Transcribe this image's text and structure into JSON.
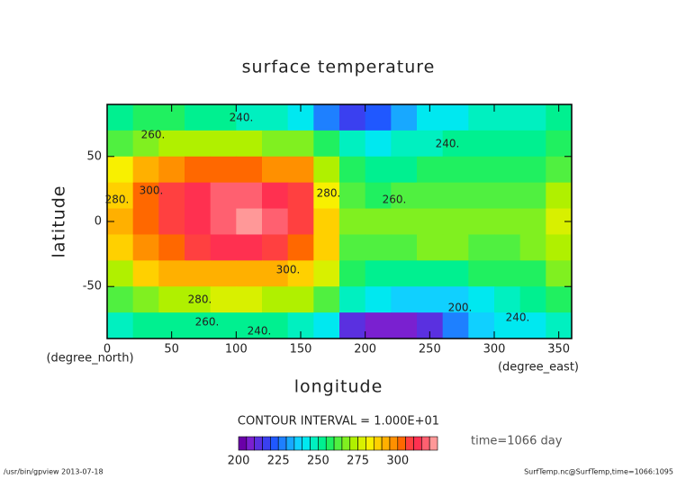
{
  "chart_data": {
    "type": "contour",
    "title": "surface temperature",
    "xlabel": "longitude",
    "ylabel": "latitude",
    "xunit": "(degree_east)",
    "yunit": "(degree_north)",
    "xlim": [
      0,
      360
    ],
    "ylim": [
      -90,
      90
    ],
    "xticks": [
      0,
      50,
      100,
      150,
      200,
      250,
      300,
      350
    ],
    "yticks": [
      -50,
      0,
      50
    ],
    "x": [
      10,
      30,
      50,
      70,
      90,
      110,
      130,
      150,
      170,
      190,
      210,
      230,
      250,
      270,
      290,
      310,
      330,
      350
    ],
    "y": [
      80,
      60,
      40,
      20,
      0,
      -20,
      -40,
      -60,
      -80
    ],
    "values": [
      [
        250,
        255,
        255,
        250,
        250,
        245,
        245,
        240,
        225,
        215,
        220,
        230,
        240,
        240,
        245,
        245,
        245,
        250
      ],
      [
        262,
        268,
        270,
        272,
        272,
        270,
        268,
        265,
        255,
        245,
        240,
        245,
        245,
        250,
        252,
        252,
        250,
        255
      ],
      [
        280,
        290,
        295,
        300,
        300,
        300,
        298,
        295,
        270,
        255,
        250,
        250,
        255,
        258,
        258,
        255,
        255,
        260
      ],
      [
        288,
        300,
        305,
        310,
        315,
        315,
        310,
        305,
        280,
        260,
        258,
        260,
        262,
        262,
        262,
        260,
        262,
        270
      ],
      [
        290,
        300,
        305,
        312,
        318,
        320,
        315,
        305,
        285,
        265,
        265,
        265,
        268,
        268,
        268,
        265,
        268,
        275
      ],
      [
        285,
        295,
        302,
        308,
        310,
        310,
        308,
        302,
        285,
        262,
        262,
        262,
        265,
        265,
        262,
        262,
        265,
        272
      ],
      [
        272,
        285,
        290,
        292,
        292,
        292,
        290,
        285,
        275,
        255,
        252,
        250,
        250,
        252,
        255,
        255,
        255,
        265
      ],
      [
        262,
        268,
        272,
        272,
        275,
        275,
        272,
        270,
        262,
        248,
        240,
        235,
        235,
        238,
        242,
        248,
        250,
        255
      ],
      [
        245,
        250,
        252,
        252,
        252,
        252,
        250,
        248,
        240,
        210,
        205,
        205,
        210,
        225,
        235,
        240,
        242,
        245
      ]
    ],
    "contour_labels": [
      "240.",
      "260.",
      "280.",
      "300.",
      "280.",
      "300.",
      "280.",
      "260.",
      "240.",
      "240.",
      "260.",
      "240.",
      "200."
    ],
    "contour_interval": "CONTOUR INTERVAL = 1.000E+01",
    "colorbar": {
      "lim": [
        200,
        325
      ],
      "step": 5,
      "ticks": [
        200,
        225,
        250,
        275,
        300
      ],
      "colors": [
        "#6a00a8",
        "#7a20d0",
        "#5a30e0",
        "#3a40f0",
        "#2058ff",
        "#1e80ff",
        "#18a8ff",
        "#10d0ff",
        "#00e8f0",
        "#00f0c0",
        "#00f090",
        "#20f060",
        "#50f040",
        "#80f020",
        "#b0f000",
        "#d8f000",
        "#f8f000",
        "#ffd000",
        "#ffb000",
        "#ff9000",
        "#ff6800",
        "#ff4040",
        "#ff3050",
        "#ff6070",
        "#ff9898"
      ]
    },
    "time_label": "time=1066 day",
    "footer_left": "/usr/bin/gpview  2013-07-18",
    "footer_right": "SurfTemp.nc@SurfTemp,time=1066:1095"
  }
}
